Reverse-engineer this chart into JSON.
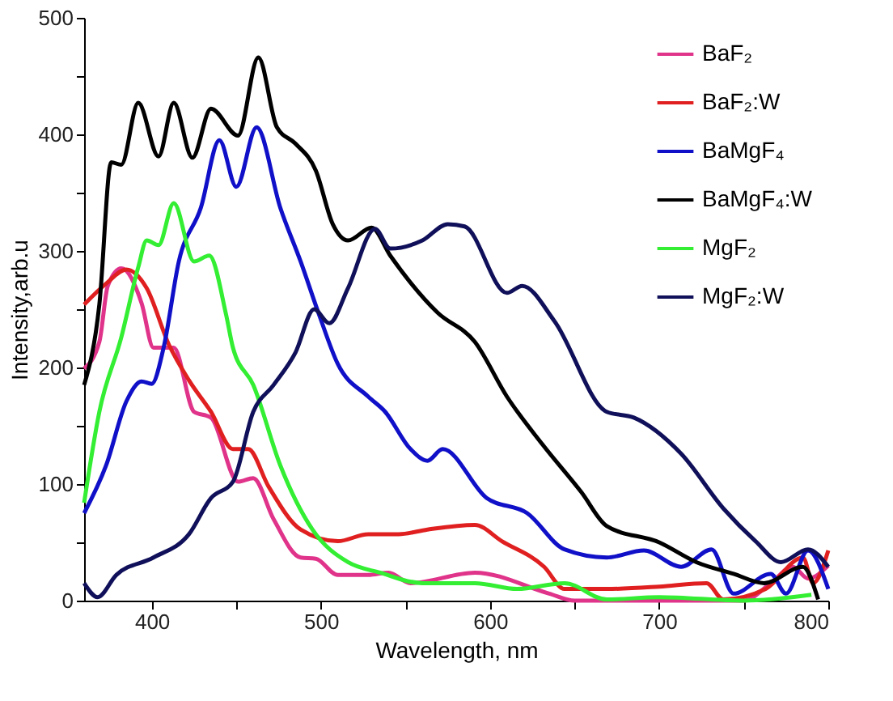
{
  "chart_data": {
    "type": "line",
    "xlabel": "Wavelength, nm",
    "ylabel": "Intensity,arb.u",
    "xlim": [
      360,
      800
    ],
    "ylim": [
      0,
      500
    ],
    "xticks": [
      400,
      {
        "value": 450,
        "label": null
      },
      500,
      {
        "value": 550,
        "label": null
      },
      600,
      {
        "value": 650,
        "label": null
      },
      700,
      {
        "value": 750,
        "label": null
      },
      800
    ],
    "yticks": [
      0,
      {
        "value": 50,
        "label": null
      },
      100,
      {
        "value": 150,
        "label": null
      },
      200,
      {
        "value": 250,
        "label": null
      },
      300,
      {
        "value": 350,
        "label": null
      },
      400,
      {
        "value": 450,
        "label": null
      },
      500
    ],
    "grid": false,
    "legend": "top right",
    "marker": "none",
    "line_style": "solid",
    "series": [
      {
        "name": "BaF₂",
        "color": "#e0338a",
        "x": [
          360,
          369,
          374,
          382,
          394,
          401,
          413,
          425,
          435,
          451,
          460,
          472,
          488,
          497,
          510,
          528,
          540,
          553,
          591,
          635,
          650,
          700,
          750,
          766,
          779,
          788,
          800
        ],
        "values": [
          199,
          222,
          270,
          285,
          255,
          217,
          217,
          162,
          157,
          102,
          105,
          70,
          37,
          36,
          22,
          22,
          24,
          15,
          24,
          6,
          0,
          0,
          0,
          15,
          29,
          19,
          30
        ]
      },
      {
        "name": "BaF₂:W",
        "color": "#e02020",
        "x": [
          360,
          373,
          385,
          397,
          410,
          422,
          435,
          448,
          457,
          469,
          488,
          510,
          528,
          546,
          563,
          591,
          607,
          632,
          644,
          669,
          700,
          728,
          738,
          763,
          785,
          791,
          800
        ],
        "values": [
          254,
          272,
          284,
          268,
          220,
          189,
          162,
          130,
          130,
          98,
          61,
          51,
          57,
          57,
          61,
          65,
          51,
          29,
          10,
          10,
          12,
          15,
          1,
          10,
          37,
          15,
          43
        ]
      },
      {
        "name": "BaMgF₄",
        "color": "#1010c8",
        "x": [
          360,
          373,
          385,
          394,
          400,
          407,
          416,
          429,
          440,
          450,
          462,
          476,
          488,
          499,
          510,
          528,
          538,
          553,
          563,
          572,
          598,
          622,
          644,
          669,
          691,
          713,
          731,
          744,
          766,
          775,
          788,
          800
        ],
        "values": [
          75,
          116,
          171,
          188,
          186,
          217,
          291,
          337,
          395,
          355,
          406,
          337,
          291,
          245,
          203,
          175,
          162,
          130,
          120,
          130,
          88,
          75,
          44,
          37,
          43,
          29,
          44,
          6,
          23,
          6,
          43,
          10
        ]
      },
      {
        "name": "BaMgF₄:W",
        "color": "#000000",
        "x": [
          360,
          369,
          376,
          382,
          392,
          404,
          413,
          424,
          435,
          451,
          463,
          474,
          485,
          497,
          507,
          516,
          530,
          541,
          569,
          591,
          610,
          631,
          654,
          669,
          700,
          722,
          744,
          762,
          785,
          794
        ],
        "values": [
          185,
          254,
          376,
          374,
          427,
          381,
          427,
          380,
          422,
          399,
          466,
          406,
          392,
          369,
          323,
          309,
          320,
          296,
          247,
          222,
          175,
          134,
          93,
          64,
          50,
          33,
          23,
          15,
          29,
          1
        ]
      },
      {
        "name": "MgF₂",
        "color": "#33ee33",
        "x": [
          360,
          369,
          382,
          392,
          397,
          404,
          413,
          425,
          434,
          444,
          448,
          460,
          476,
          495,
          516,
          535,
          560,
          591,
          616,
          644,
          669,
          700,
          750,
          790
        ],
        "values": [
          84,
          162,
          226,
          286,
          309,
          305,
          341,
          291,
          296,
          245,
          217,
          185,
          116,
          61,
          33,
          24,
          15,
          15,
          10,
          15,
          1,
          3,
          0,
          5
        ]
      },
      {
        "name": "MgF₂:W",
        "color": "#10105a",
        "x": [
          360,
          368,
          379,
          401,
          422,
          435,
          448,
          460,
          472,
          485,
          496,
          505,
          516,
          532,
          541,
          560,
          575,
          585,
          610,
          619,
          638,
          669,
          685,
          713,
          738,
          757,
          772,
          788,
          800
        ],
        "values": [
          15,
          3,
          22,
          37,
          57,
          88,
          102,
          162,
          185,
          213,
          250,
          238,
          268,
          319,
          302,
          309,
          323,
          321,
          264,
          270,
          240,
          162,
          157,
          126,
          79,
          51,
          33,
          44,
          29
        ]
      }
    ]
  }
}
